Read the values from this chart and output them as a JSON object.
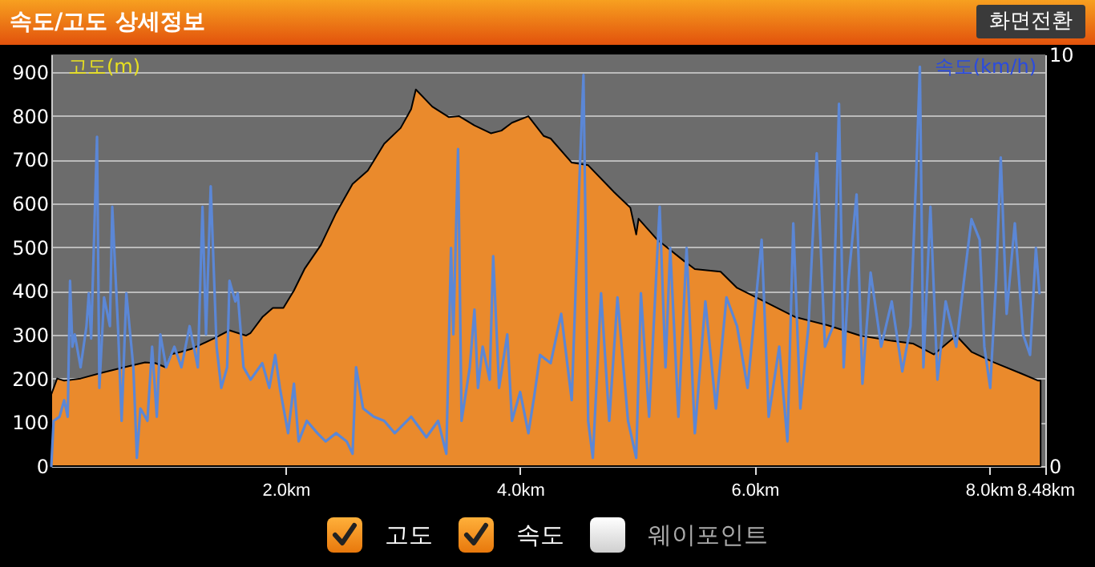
{
  "chart_data": {
    "type": "area",
    "title": "속도/고도 상세정보",
    "ylabel": "고도(m)",
    "y2label": "속도(km/h)",
    "annotations": [
      "화면전환",
      "웨이포인트"
    ],
    "xlim": [
      0,
      8.48
    ],
    "xticks": [
      {
        "value": 2,
        "label": "2.0km"
      },
      {
        "value": 4,
        "label": "4.0km"
      },
      {
        "value": 6,
        "label": "6.0km"
      },
      {
        "value": 8,
        "label": "8.0km"
      },
      {
        "value": 8.48,
        "label": "8.48km"
      }
    ],
    "ylim": [
      0,
      940
    ],
    "yticks": [
      0,
      100,
      200,
      300,
      400,
      500,
      600,
      700,
      800,
      900
    ],
    "y2lim": [
      0,
      10
    ],
    "y2ticks": [
      0,
      10
    ],
    "grid": "y",
    "legend": "bottom",
    "series": [
      {
        "name": "고도",
        "type": "area",
        "color": "#ea8a2c",
        "x": [
          0,
          0.05,
          0.11,
          0.25,
          0.43,
          0.61,
          0.8,
          0.89,
          0.98,
          1.02,
          1.11,
          1.2,
          1.39,
          1.52,
          1.66,
          1.7,
          1.8,
          1.89,
          1.98,
          2.07,
          2.16,
          2.3,
          2.43,
          2.57,
          2.7,
          2.84,
          2.98,
          3.07,
          3.11,
          3.25,
          3.39,
          3.48,
          3.61,
          3.75,
          3.84,
          3.93,
          4.07,
          4.2,
          4.26,
          4.44,
          4.58,
          4.8,
          4.94,
          4.99,
          5.01,
          5.17,
          5.4,
          5.49,
          5.71,
          5.85,
          6.12,
          6.35,
          6.62,
          6.9,
          7.17,
          7.35,
          7.53,
          7.72,
          7.85,
          8.04,
          8.26,
          8.42,
          8.44
        ],
        "values": [
          164,
          200,
          195,
          200,
          213,
          225,
          237,
          235,
          225,
          255,
          261,
          268,
          292,
          310,
          298,
          304,
          340,
          361,
          361,
          401,
          450,
          505,
          578,
          644,
          675,
          736,
          772,
          815,
          860,
          821,
          797,
          799,
          778,
          760,
          766,
          784,
          799,
          754,
          748,
          693,
          687,
          626,
          590,
          529,
          565,
          517,
          468,
          450,
          444,
          407,
          371,
          340,
          322,
          298,
          286,
          280,
          255,
          298,
          261,
          237,
          213,
          195,
          195
        ]
      },
      {
        "name": "속도",
        "type": "line",
        "axis": "y2",
        "color": "#5b87d6",
        "x": [
          0,
          0.02,
          0.07,
          0.11,
          0.14,
          0.16,
          0.18,
          0.2,
          0.25,
          0.3,
          0.32,
          0.34,
          0.39,
          0.41,
          0.45,
          0.5,
          0.52,
          0.57,
          0.6,
          0.64,
          0.7,
          0.73,
          0.76,
          0.82,
          0.86,
          0.9,
          0.93,
          0.98,
          1.05,
          1.11,
          1.18,
          1.25,
          1.29,
          1.32,
          1.36,
          1.41,
          1.45,
          1.5,
          1.52,
          1.57,
          1.59,
          1.64,
          1.7,
          1.8,
          1.86,
          1.91,
          1.95,
          2.02,
          2.07,
          2.11,
          2.18,
          2.27,
          2.34,
          2.43,
          2.52,
          2.57,
          2.6,
          2.66,
          2.75,
          2.84,
          2.93,
          3.07,
          3.2,
          3.3,
          3.37,
          3.41,
          3.43,
          3.47,
          3.5,
          3.57,
          3.61,
          3.64,
          3.68,
          3.74,
          3.77,
          3.82,
          3.89,
          3.93,
          4.0,
          4.07,
          4.12,
          4.17,
          4.26,
          4.35,
          4.44,
          4.51,
          4.54,
          4.58,
          4.62,
          4.69,
          4.76,
          4.83,
          4.92,
          4.99,
          5.03,
          5.1,
          5.19,
          5.24,
          5.28,
          5.35,
          5.42,
          5.49,
          5.58,
          5.67,
          5.76,
          5.85,
          5.94,
          6.06,
          6.12,
          6.21,
          6.28,
          6.33,
          6.39,
          6.46,
          6.53,
          6.6,
          6.67,
          6.72,
          6.76,
          6.8,
          6.87,
          6.92,
          6.99,
          7.08,
          7.17,
          7.26,
          7.33,
          7.38,
          7.41,
          7.44,
          7.5,
          7.56,
          7.63,
          7.72,
          7.79,
          7.85,
          7.92,
          7.96,
          8.01,
          8.06,
          8.1,
          8.15,
          8.22,
          8.29,
          8.35,
          8.4,
          8.43
        ],
        "values": [
          0,
          1.1,
          1.2,
          1.6,
          1.2,
          4.5,
          2.9,
          3.2,
          2.4,
          3.4,
          4.2,
          3.1,
          8.0,
          1.9,
          4.1,
          3.4,
          6.3,
          3.3,
          1.1,
          4.2,
          2.4,
          0.2,
          1.4,
          1.1,
          2.9,
          1.2,
          3.2,
          2.4,
          2.9,
          2.4,
          3.4,
          2.4,
          6.3,
          3.2,
          6.8,
          2.9,
          1.9,
          2.4,
          4.5,
          4.0,
          4.2,
          2.4,
          2.1,
          2.5,
          1.9,
          2.7,
          1.9,
          0.8,
          2.0,
          0.6,
          1.1,
          0.8,
          0.6,
          0.8,
          0.6,
          0.3,
          2.4,
          1.4,
          1.2,
          1.1,
          0.8,
          1.2,
          0.7,
          1.1,
          0.3,
          5.3,
          3.2,
          7.7,
          1.1,
          2.4,
          3.8,
          1.9,
          2.9,
          2.1,
          5.1,
          1.9,
          3.2,
          1.1,
          1.8,
          0.8,
          1.7,
          2.7,
          2.5,
          3.7,
          1.6,
          7.3,
          9.5,
          1.1,
          0.2,
          4.2,
          1.1,
          4.1,
          1.1,
          0.2,
          4.2,
          1.2,
          6.3,
          2.4,
          5.3,
          1.2,
          5.3,
          0.8,
          4.0,
          1.4,
          4.1,
          3.4,
          1.9,
          5.5,
          1.2,
          2.9,
          0.6,
          5.9,
          1.4,
          3.4,
          7.6,
          2.9,
          3.4,
          8.8,
          2.4,
          4.5,
          6.6,
          2.0,
          4.7,
          2.9,
          4.0,
          2.3,
          3.4,
          7.2,
          9.7,
          2.4,
          6.3,
          2.1,
          4.0,
          2.9,
          4.6,
          6.0,
          5.5,
          2.9,
          1.9,
          4.5,
          7.5,
          3.7,
          5.9,
          3.2,
          2.7,
          5.3,
          4.2
        ]
      }
    ]
  }
}
